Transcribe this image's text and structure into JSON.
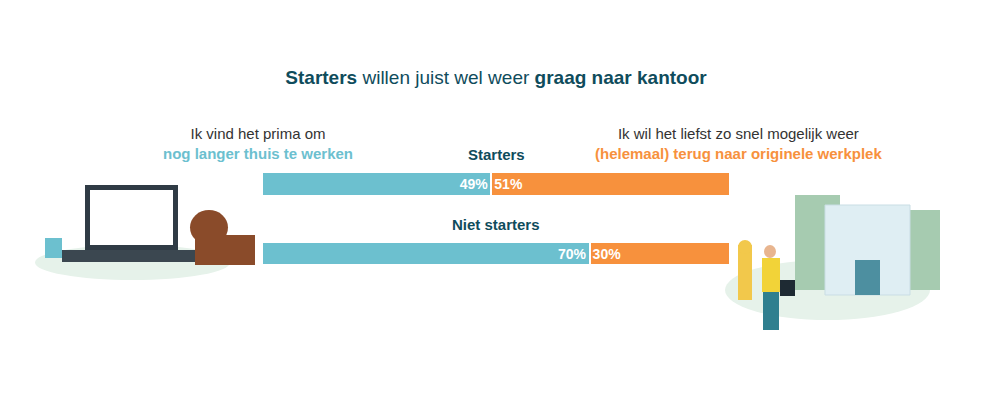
{
  "chart_data": {
    "type": "bar",
    "orientation": "horizontal",
    "stacked": true,
    "title": "Starters willen juist wel weer graag naar kantoor",
    "title_bold": [
      "Starters",
      "graag naar kantoor"
    ],
    "categories": [
      "Starters",
      "Niet starters"
    ],
    "series": [
      {
        "name": [
          "Ik vind het prima om",
          "nog langer thuis te werken"
        ],
        "color": "#6cc0cf",
        "values": [
          49,
          70
        ],
        "value_labels": [
          "49%",
          "70%"
        ]
      },
      {
        "name": [
          "Ik wil het liefst zo snel mogelijk weer",
          "(helemaal) terug naar originele werkplek"
        ],
        "color": "#f7913d",
        "values": [
          51,
          30
        ],
        "value_labels": [
          "51%",
          "30%"
        ]
      }
    ],
    "xlim": [
      0,
      100
    ],
    "xticks": [
      0,
      100
    ],
    "data_labels": true,
    "tick_labels": false,
    "grid": false
  }
}
